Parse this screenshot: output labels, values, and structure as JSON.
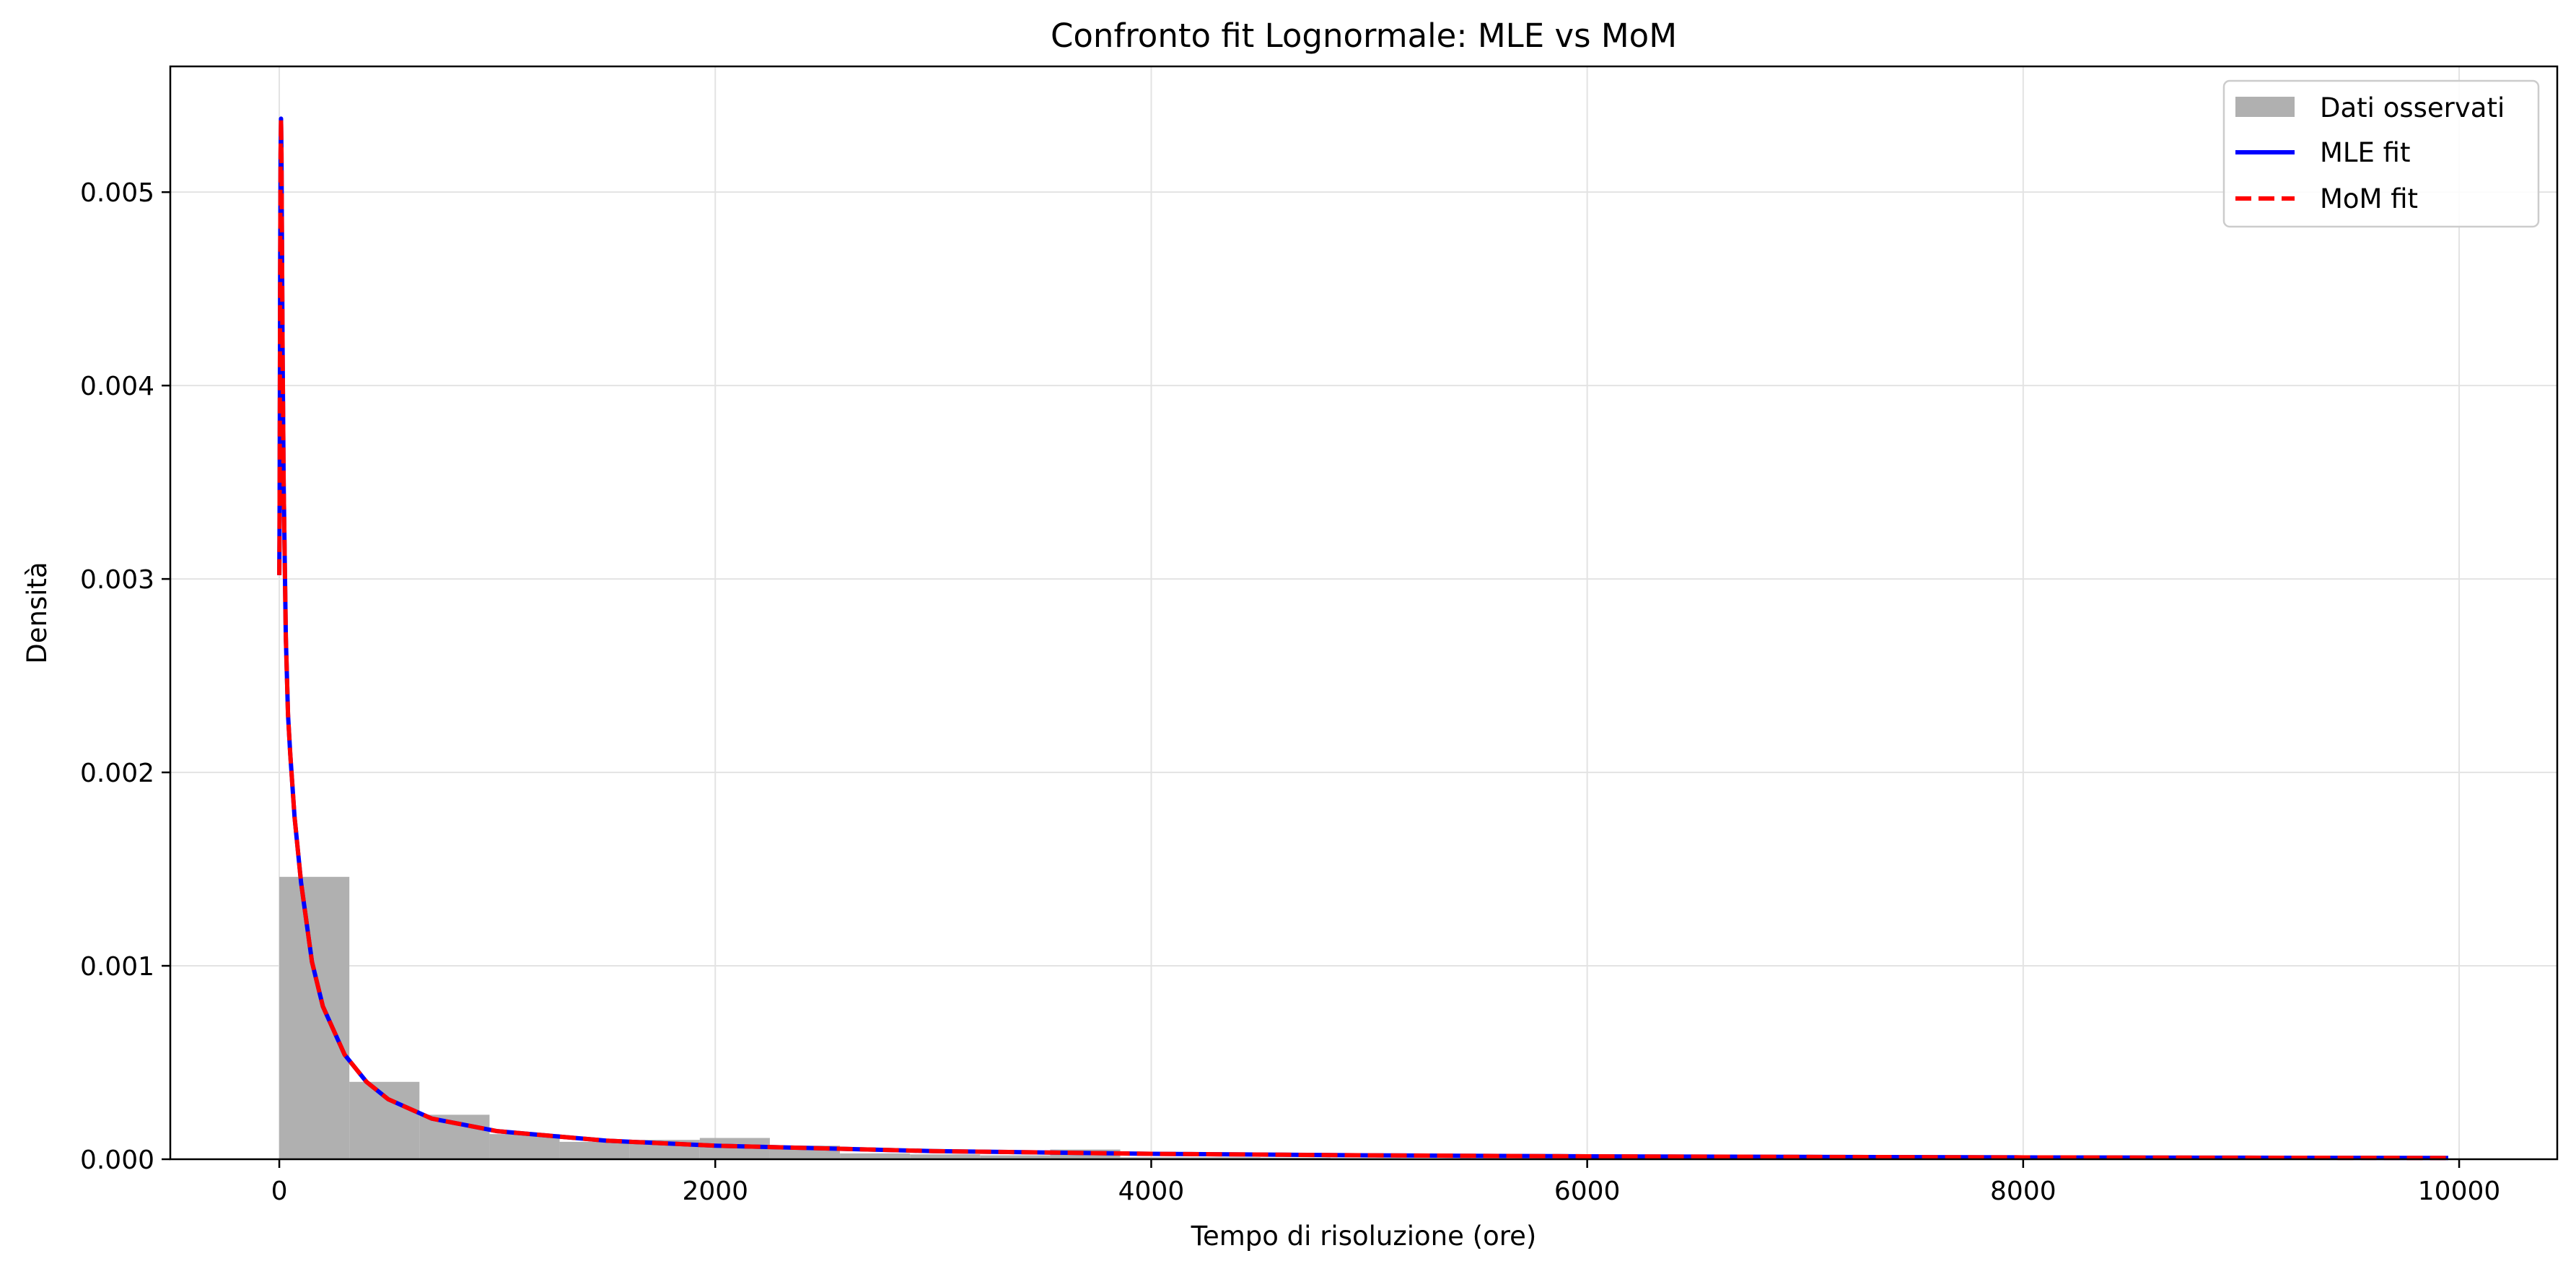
{
  "chart_data": {
    "type": "histogram_with_pdf",
    "title": "Confronto fit Lognormale: MLE vs MoM",
    "xlabel": "Tempo di risoluzione (ore)",
    "ylabel": "Densità",
    "xlim": [
      -500,
      10450
    ],
    "ylim": [
      0,
      0.00565
    ],
    "grid": true,
    "legend_position": "top-right",
    "xticks": [
      0,
      2000,
      4000,
      6000,
      8000,
      10000
    ],
    "xtick_labels": [
      "0",
      "2000",
      "4000",
      "6000",
      "8000",
      "10000"
    ],
    "yticks": [
      0,
      0.001,
      0.002,
      0.003,
      0.004,
      0.005
    ],
    "ytick_labels": [
      "0.000",
      "0.001",
      "0.002",
      "0.003",
      "0.004",
      "0.005"
    ],
    "histogram": {
      "name": "Dati osservati",
      "color": "#b0b0b0",
      "bin_width": 321.5,
      "bin_starts": [
        0,
        321.5,
        643,
        964.5,
        1286,
        1607.5,
        1929,
        2250.5,
        2572,
        2893.5,
        3215,
        3536.5,
        3858,
        4179.5,
        4501,
        4822.5,
        5144,
        5465.5,
        5787,
        6108.5
      ],
      "densities": [
        0.00146,
        0.0004,
        0.00023,
        0.00013,
        9e-05,
        0.0001,
        0.00011,
        7e-05,
        3e-05,
        2.5e-05,
        2e-05,
        5e-05,
        1e-05,
        1e-05,
        8e-06,
        6e-06,
        5e-06,
        4e-06,
        4e-06,
        4e-06
      ]
    },
    "series": [
      {
        "name": "MLE fit",
        "color": "#0000ff",
        "style": "solid",
        "x": [
          0,
          1,
          2,
          4,
          6,
          8,
          10,
          15,
          20,
          30,
          40,
          50,
          70,
          100,
          150,
          200,
          300,
          400,
          500,
          700,
          1000,
          1500,
          2000,
          3000,
          4000,
          5000,
          6000,
          7000,
          8000,
          9000,
          9950
        ],
        "y": [
          0.00302,
          0.0032,
          0.0036,
          0.0046,
          0.0052,
          0.00538,
          0.0052,
          0.0042,
          0.0035,
          0.0027,
          0.0023,
          0.0021,
          0.00177,
          0.00143,
          0.00102,
          0.00079,
          0.00054,
          0.0004,
          0.00031,
          0.00021,
          0.000145,
          9.6e-05,
          7e-05,
          4.2e-05,
          2.8e-05,
          2e-05,
          1.5e-05,
          1.2e-05,
          9.5e-06,
          7.8e-06,
          6.5e-06
        ]
      },
      {
        "name": "MoM fit",
        "color": "#ff0000",
        "style": "dashed",
        "x": [
          0,
          1,
          2,
          4,
          6,
          8,
          10,
          15,
          20,
          30,
          40,
          50,
          70,
          100,
          150,
          200,
          300,
          400,
          500,
          700,
          1000,
          1500,
          2000,
          3000,
          4000,
          5000,
          6000,
          7000,
          8000,
          9000,
          9950
        ],
        "y": [
          0.00302,
          0.0032,
          0.0036,
          0.0046,
          0.0052,
          0.00538,
          0.0052,
          0.0042,
          0.0035,
          0.0027,
          0.0023,
          0.0021,
          0.00177,
          0.00143,
          0.00102,
          0.00079,
          0.00054,
          0.0004,
          0.00031,
          0.00021,
          0.000145,
          9.6e-05,
          7e-05,
          4.2e-05,
          2.8e-05,
          2e-05,
          1.5e-05,
          1.2e-05,
          9.5e-06,
          7.8e-06,
          6.5e-06
        ]
      }
    ],
    "legend": [
      {
        "label": "Dati osservati",
        "kind": "patch",
        "color": "#b0b0b0"
      },
      {
        "label": "MLE fit",
        "kind": "line",
        "color": "#0000ff",
        "style": "solid"
      },
      {
        "label": "MoM fit",
        "kind": "line",
        "color": "#ff0000",
        "style": "dashed"
      }
    ]
  }
}
